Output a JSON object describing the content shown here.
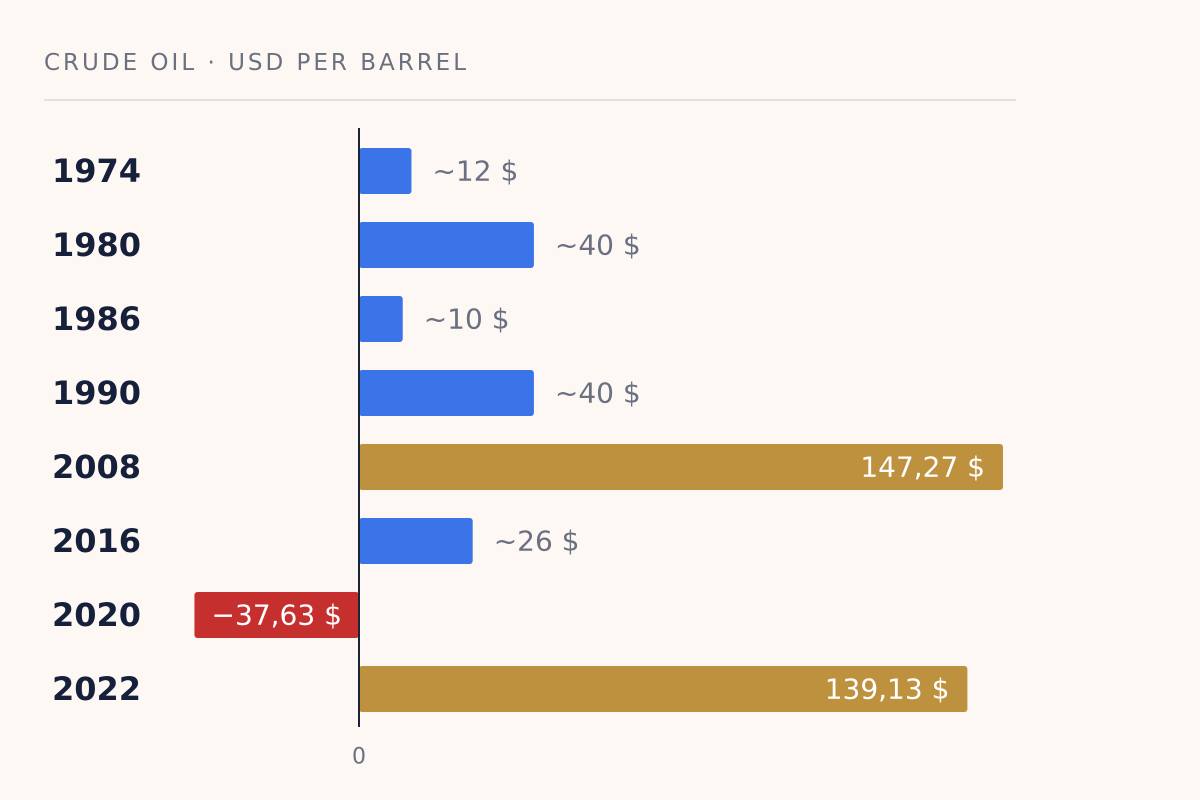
{
  "chart_data": {
    "type": "bar",
    "orientation": "horizontal",
    "title": "CRUDE OIL · USD PER BARREL",
    "categories": [
      "1974",
      "1980",
      "1986",
      "1990",
      "2008",
      "2016",
      "2020",
      "2022"
    ],
    "values": [
      12,
      40,
      10,
      40,
      147.27,
      26,
      -37.63,
      139.13
    ],
    "value_labels": [
      "~12 $",
      "~40 $",
      "~10 $",
      "~40 $",
      "147,27 $",
      "~26 $",
      "−37,63 $",
      "139,13 $"
    ],
    "highlight": [
      "normal",
      "normal",
      "normal",
      "normal",
      "peak",
      "normal",
      "negative",
      "peak"
    ],
    "xlim": [
      -37.63,
      147.27
    ],
    "x_ticks": [
      "0"
    ],
    "grid": false,
    "legend": "none",
    "colors": {
      "normal": "#3b73e8",
      "peak": "#be913f",
      "negative": "#c5302f",
      "axis": "#1c2438",
      "background": "#fdf8f3"
    }
  }
}
